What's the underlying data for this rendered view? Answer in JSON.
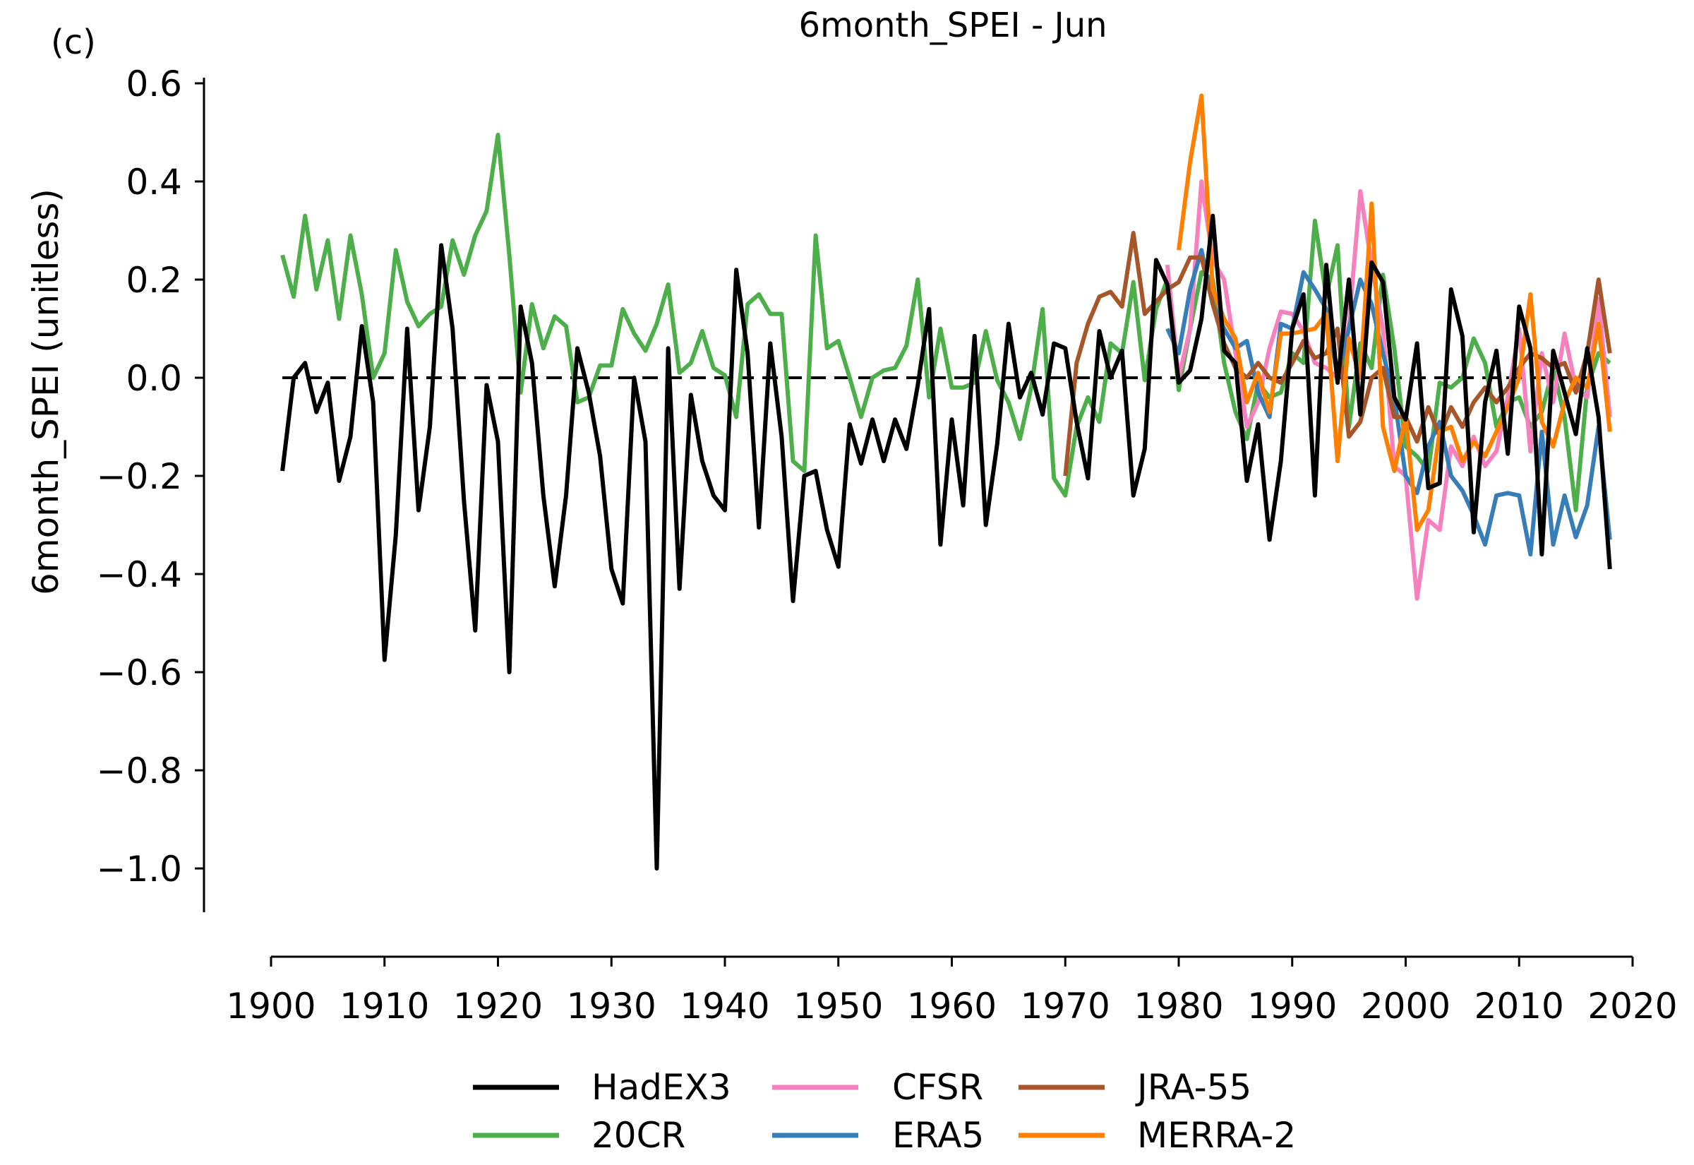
{
  "chart_data": {
    "type": "line",
    "panel_label": "(c)",
    "title": "6month_SPEI - Jun",
    "xlabel": "",
    "ylabel": "6month_SPEI (unitless)",
    "xlim": [
      1900,
      2020
    ],
    "ylim": [
      -1.08,
      0.65
    ],
    "xticks": [
      "1900",
      "1910",
      "1920",
      "1930",
      "1940",
      "1950",
      "1960",
      "1970",
      "1980",
      "1990",
      "2000",
      "2010",
      "2020"
    ],
    "yticks": [
      "0.6",
      "0.4",
      "0.2",
      "0.0",
      "−0.2",
      "−0.4",
      "−0.6",
      "−0.8",
      "−1.0"
    ],
    "ytick_values": [
      0.6,
      0.4,
      0.2,
      0.0,
      -0.2,
      -0.4,
      -0.6,
      -0.8,
      -1.0
    ],
    "zero_line": {
      "y": 0.0,
      "style": "dashed",
      "color": "#000000"
    },
    "legend_placement": "bottom-center",
    "series": [
      {
        "name": "20CR",
        "color": "#4daf4a",
        "start_year": 1901,
        "values": [
          0.25,
          0.165,
          0.33,
          0.18,
          0.28,
          0.12,
          0.29,
          0.17,
          0.0,
          0.05,
          0.26,
          0.155,
          0.105,
          0.13,
          0.145,
          0.28,
          0.21,
          0.29,
          0.34,
          0.495,
          0.25,
          -0.03,
          0.15,
          0.06,
          0.125,
          0.105,
          -0.05,
          -0.04,
          0.025,
          0.025,
          0.14,
          0.09,
          0.055,
          0.11,
          0.19,
          0.01,
          0.03,
          0.095,
          0.02,
          0.005,
          -0.08,
          0.15,
          0.17,
          0.13,
          0.13,
          -0.17,
          -0.19,
          0.29,
          0.06,
          0.075,
          0.0,
          -0.08,
          0.0,
          0.015,
          0.02,
          0.065,
          0.2,
          -0.04,
          0.1,
          -0.02,
          -0.02,
          -0.01,
          0.095,
          -0.005,
          -0.05,
          -0.125,
          -0.02,
          0.14,
          -0.205,
          -0.24,
          -0.1,
          -0.04,
          -0.09,
          0.07,
          0.05,
          0.195,
          -0.005,
          0.14,
          0.2,
          -0.025,
          0.1,
          0.215,
          0.2,
          0.03,
          -0.07,
          -0.125,
          -0.01,
          -0.04,
          -0.03,
          0.05,
          0.03,
          0.32,
          0.165,
          0.27,
          -0.1,
          0.07,
          0.02,
          0.21,
          0.06,
          -0.14,
          -0.16,
          -0.19,
          -0.01,
          -0.02,
          0.0,
          0.08,
          0.03,
          -0.1,
          -0.05,
          -0.04,
          -0.1,
          -0.07,
          0.02,
          -0.08,
          -0.27,
          -0.02,
          0.05,
          0.03
        ]
      },
      {
        "name": "CFSR",
        "color": "#f781bf",
        "start_year": 1979,
        "values": [
          0.23,
          0.0,
          0.1,
          0.4,
          0.24,
          0.2,
          0.05,
          -0.1,
          -0.05,
          0.06,
          0.135,
          0.13,
          0.095,
          0.03,
          0.02,
          0.0,
          0.11,
          0.38,
          0.23,
          0.1,
          -0.18,
          -0.2,
          -0.45,
          -0.29,
          -0.31,
          -0.14,
          -0.18,
          -0.12,
          -0.18,
          -0.15,
          -0.04,
          0.1,
          -0.15,
          0.05,
          -0.05,
          0.09,
          -0.02,
          -0.04,
          0.16,
          -0.08
        ]
      },
      {
        "name": "ERA5",
        "color": "#377eb8",
        "start_year": 1979,
        "values": [
          0.1,
          0.05,
          0.18,
          0.26,
          0.15,
          0.1,
          0.06,
          0.075,
          -0.03,
          -0.08,
          0.11,
          0.1,
          0.215,
          0.18,
          0.14,
          0.0,
          0.1,
          0.2,
          0.15,
          0.05,
          -0.04,
          -0.2,
          -0.235,
          -0.14,
          -0.09,
          -0.2,
          -0.23,
          -0.28,
          -0.34,
          -0.24,
          -0.235,
          -0.24,
          -0.36,
          -0.11,
          -0.34,
          -0.24,
          -0.325,
          -0.26,
          -0.1,
          -0.33
        ]
      },
      {
        "name": "JRA-55",
        "color": "#a65628",
        "start_year": 1970,
        "values": [
          -0.2,
          0.03,
          0.11,
          0.165,
          0.175,
          0.145,
          0.295,
          0.13,
          0.155,
          0.18,
          0.195,
          0.245,
          0.245,
          0.15,
          0.07,
          0.02,
          0.0,
          0.03,
          0.0,
          -0.01,
          0.03,
          0.075,
          0.04,
          0.05,
          0.1,
          -0.12,
          -0.09,
          0.0,
          0.02,
          -0.08,
          -0.08,
          -0.13,
          -0.06,
          -0.12,
          -0.06,
          -0.1,
          -0.05,
          -0.02,
          -0.05,
          -0.02,
          0.02,
          0.05,
          0.04,
          0.02,
          0.03,
          -0.03,
          0.05,
          0.2,
          0.05
        ]
      },
      {
        "name": "MERRA-2",
        "color": "#ff7f00",
        "start_year": 1980,
        "values": [
          0.26,
          0.44,
          0.575,
          0.18,
          0.12,
          0.08,
          -0.05,
          0.01,
          -0.07,
          0.09,
          0.09,
          0.095,
          0.1,
          0.13,
          -0.17,
          0.08,
          0.0,
          0.355,
          -0.1,
          -0.19,
          -0.08,
          -0.31,
          -0.27,
          -0.11,
          -0.1,
          -0.17,
          -0.13,
          -0.16,
          -0.11,
          -0.06,
          0.0,
          0.17,
          -0.09,
          -0.14,
          -0.05,
          0.0,
          -0.02,
          0.11,
          -0.11
        ]
      },
      {
        "name": "HadEX3",
        "color": "#000000",
        "start_year": 1901,
        "values": [
          -0.19,
          0.0,
          0.03,
          -0.07,
          -0.01,
          -0.21,
          -0.12,
          0.105,
          -0.05,
          -0.575,
          -0.32,
          0.1,
          -0.27,
          -0.1,
          0.27,
          0.1,
          -0.25,
          -0.515,
          -0.015,
          -0.13,
          -0.6,
          0.145,
          0.03,
          -0.24,
          -0.425,
          -0.24,
          0.06,
          -0.03,
          -0.16,
          -0.39,
          -0.46,
          0.0,
          -0.13,
          -1.0,
          0.06,
          -0.43,
          -0.035,
          -0.17,
          -0.24,
          -0.27,
          0.22,
          0.05,
          -0.305,
          0.07,
          -0.12,
          -0.455,
          -0.2,
          -0.19,
          -0.31,
          -0.385,
          -0.095,
          -0.175,
          -0.085,
          -0.17,
          -0.085,
          -0.145,
          -0.015,
          0.14,
          -0.34,
          -0.085,
          -0.26,
          0.085,
          -0.3,
          -0.135,
          0.11,
          -0.04,
          0.01,
          -0.075,
          0.07,
          0.06,
          -0.09,
          -0.205,
          0.095,
          0.0,
          0.055,
          -0.24,
          -0.145,
          0.24,
          0.19,
          -0.01,
          0.015,
          0.12,
          0.33,
          0.055,
          0.03,
          -0.21,
          -0.095,
          -0.33,
          -0.17,
          0.1,
          0.17,
          -0.24,
          0.23,
          -0.01,
          0.2,
          -0.075,
          0.235,
          0.195,
          -0.04,
          -0.085,
          0.07,
          -0.225,
          -0.215,
          0.18,
          0.085,
          -0.315,
          -0.05,
          0.055,
          -0.155,
          0.145,
          0.06,
          -0.36,
          0.055,
          -0.03,
          -0.115,
          0.06,
          -0.08,
          -0.39
        ]
      }
    ],
    "legend": [
      {
        "label": "HadEX3",
        "color": "#000000"
      },
      {
        "label": "20CR",
        "color": "#4daf4a"
      },
      {
        "label": "CFSR",
        "color": "#f781bf"
      },
      {
        "label": "ERA5",
        "color": "#377eb8"
      },
      {
        "label": "JRA-55",
        "color": "#a65628"
      },
      {
        "label": "MERRA-2",
        "color": "#ff7f00"
      }
    ]
  }
}
